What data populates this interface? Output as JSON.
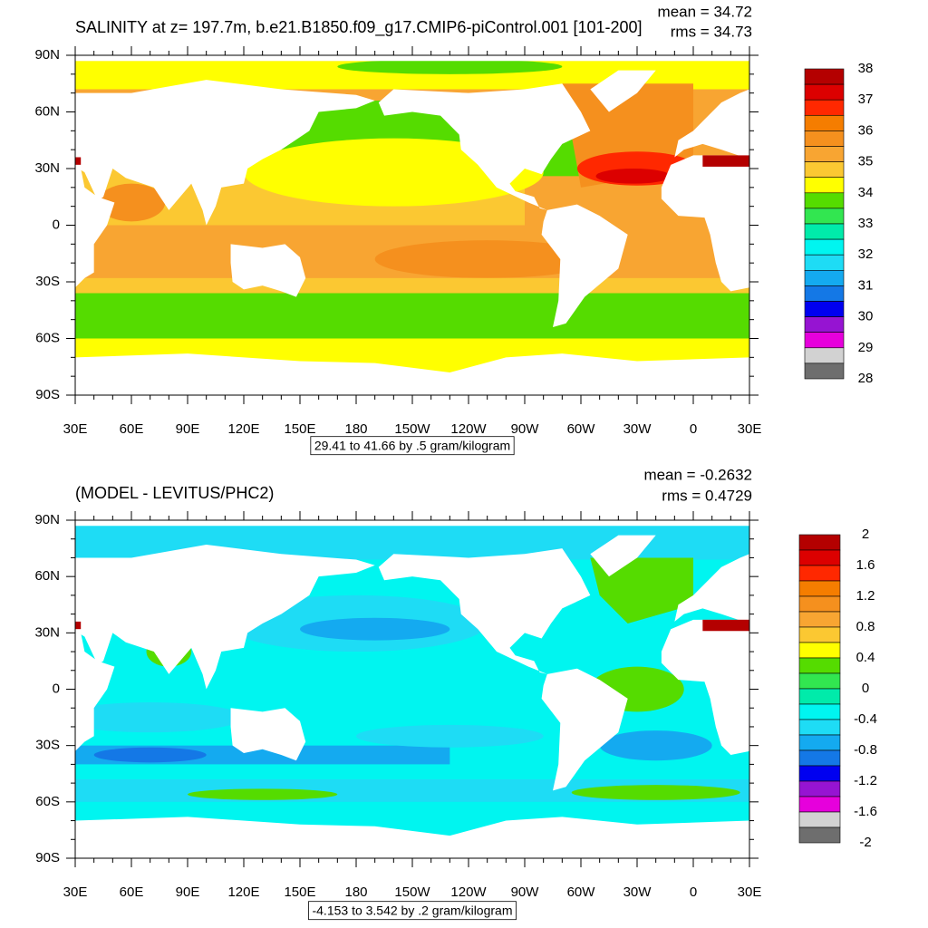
{
  "axes": {
    "y_labels": [
      "90N",
      "60N",
      "30N",
      "0",
      "30S",
      "60S",
      "90S"
    ],
    "x_labels": [
      "30E",
      "60E",
      "90E",
      "120E",
      "150E",
      "180",
      "150W",
      "120W",
      "90W",
      "60W",
      "30W",
      "0",
      "30E"
    ]
  },
  "panels": [
    {
      "title": "SALINITY at z= 197.7m, b.e21.B1850.f09_g17.CMIP6-piControl.001 [101-200]",
      "stats": [
        "mean = 34.72",
        "rms = 34.73"
      ],
      "contour_info": "29.41 to 41.66 by .5 gram/kilogram",
      "colorbar": {
        "levels": [
          38,
          37,
          36,
          35,
          34,
          33,
          32,
          31,
          30,
          29,
          28
        ],
        "colors": [
          "#b40000",
          "#dc0000",
          "#ff2800",
          "#f57d00",
          "#f5901e",
          "#f8a532",
          "#fbc832",
          "#ffff00",
          "#55dc00",
          "#32e650",
          "#00ebaa",
          "#00f5f0",
          "#1edcf5",
          "#14aaf0",
          "#1478e6",
          "#0000f0",
          "#9614d2",
          "#e600dc",
          "#d2d2d2",
          "#6e6e6e"
        ]
      }
    },
    {
      "title": "(MODEL - LEVITUS/PHC2)",
      "stats": [
        "mean = -0.2632",
        "rms = 0.4729"
      ],
      "contour_info": "-4.153 to 3.542 by .2 gram/kilogram",
      "colorbar": {
        "levels": [
          2,
          1.6,
          1.2,
          0.8,
          0.4,
          0,
          -0.4,
          -0.8,
          -1.2,
          -1.6,
          -2
        ],
        "colors": [
          "#b40000",
          "#dc0000",
          "#ff2800",
          "#f57d00",
          "#f5901e",
          "#f8a532",
          "#fbc832",
          "#ffff00",
          "#55dc00",
          "#32e650",
          "#00ebaa",
          "#00f5f0",
          "#1edcf5",
          "#14aaf0",
          "#1478e6",
          "#0000f0",
          "#9614d2",
          "#e600dc",
          "#d2d2d2",
          "#6e6e6e"
        ]
      }
    }
  ]
}
